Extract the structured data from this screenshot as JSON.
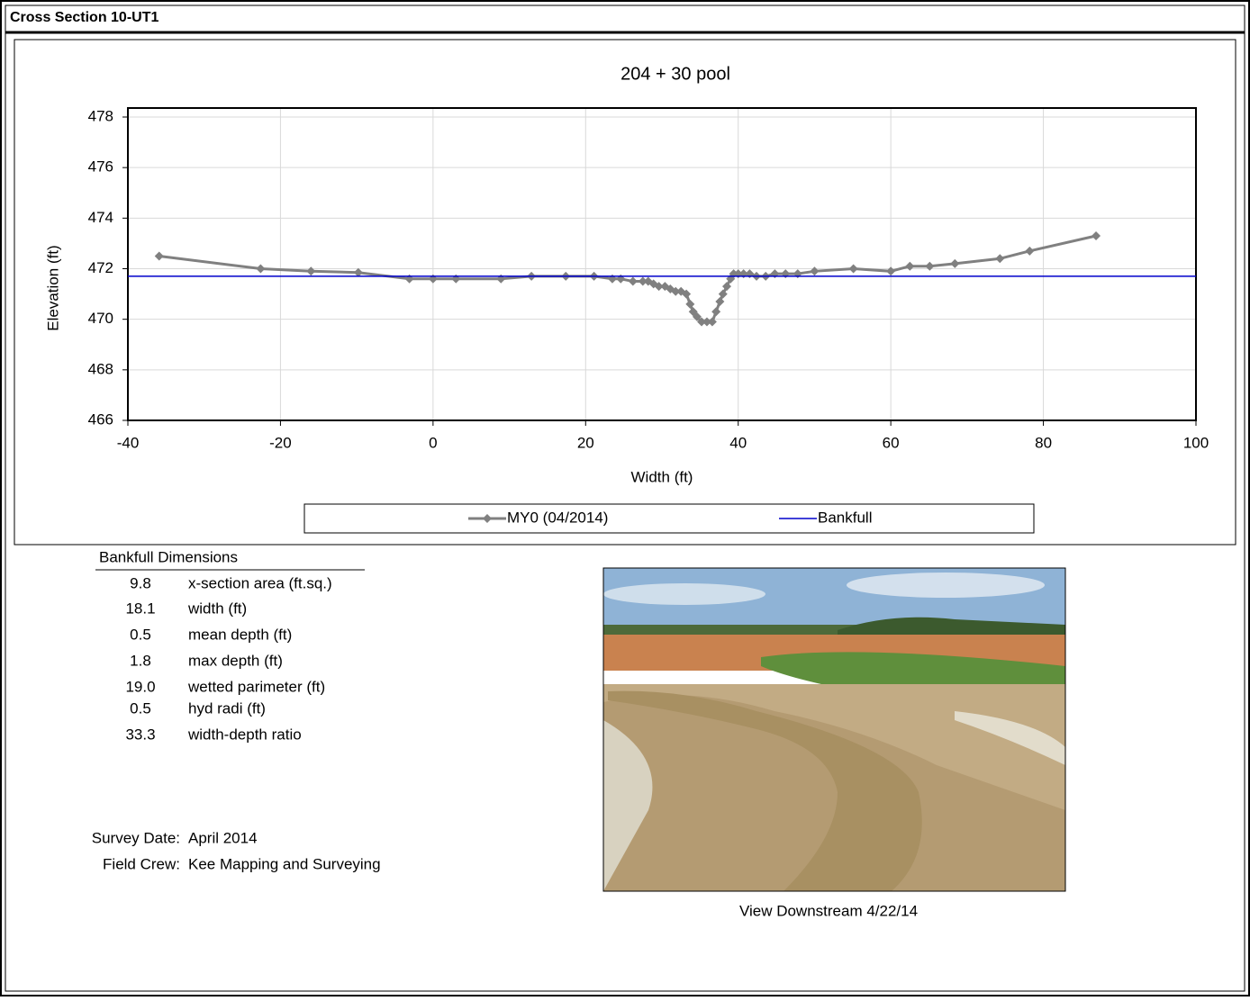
{
  "header": {
    "title": "Cross Section  10-UT1"
  },
  "chart_data": {
    "type": "line",
    "title": "204 + 30      pool",
    "xlabel": "Width (ft)",
    "ylabel": "Elevation (ft)",
    "xlim": [
      -40,
      100
    ],
    "xticks": [
      -40,
      -20,
      0,
      20,
      40,
      60,
      80,
      100
    ],
    "ylim": [
      466,
      478
    ],
    "yticks": [
      466,
      468,
      470,
      472,
      474,
      476,
      478
    ],
    "grid": true,
    "legend": "bottom",
    "series": [
      {
        "name": "MY0 (04/2014)",
        "color": "#808080",
        "marker": "diamond",
        "x": [
          -35.9,
          -22.6,
          -16.0,
          -9.8,
          -3.1,
          0.0,
          3.0,
          8.9,
          12.9,
          17.4,
          21.1,
          23.5,
          24.6,
          26.2,
          27.5,
          28.2,
          28.9,
          29.6,
          30.4,
          31.1,
          31.8,
          32.5,
          33.2,
          33.7,
          34.1,
          34.6,
          35.2,
          35.9,
          36.6,
          37.1,
          37.6,
          38.0,
          38.5,
          39.0,
          39.4,
          40.0,
          40.7,
          41.5,
          42.4,
          43.6,
          44.8,
          46.2,
          47.8,
          50.0,
          55.1,
          60.0,
          62.5,
          65.1,
          68.4,
          74.3,
          78.2,
          86.9
        ],
        "values": [
          472.5,
          472.0,
          471.9,
          471.85,
          471.6,
          471.6,
          471.6,
          471.6,
          471.7,
          471.7,
          471.7,
          471.6,
          471.6,
          471.5,
          471.5,
          471.5,
          471.4,
          471.3,
          471.3,
          471.2,
          471.1,
          471.1,
          471.0,
          470.6,
          470.3,
          470.1,
          469.9,
          469.9,
          469.9,
          470.3,
          470.7,
          471.0,
          471.3,
          471.6,
          471.8,
          471.8,
          471.8,
          471.8,
          471.7,
          471.7,
          471.8,
          471.8,
          471.8,
          471.9,
          472.0,
          471.9,
          472.1,
          472.1,
          472.2,
          472.4,
          472.7,
          473.3
        ]
      },
      {
        "name": "Bankfull",
        "color": "#0000cc",
        "x": [
          -40,
          100
        ],
        "values": [
          471.7,
          471.7
        ]
      }
    ]
  },
  "dimensions": {
    "title": "Bankfull Dimensions",
    "rows": [
      [
        "9.8",
        "x-section area (ft.sq.)"
      ],
      [
        "18.1",
        "width (ft)"
      ],
      [
        "0.5",
        "mean depth (ft)"
      ],
      [
        "1.8",
        "max depth (ft)"
      ],
      [
        "19.0",
        "wetted parimeter (ft)"
      ],
      [
        "0.5",
        "hyd radi (ft)"
      ],
      [
        "33.3",
        "width-depth ratio"
      ]
    ]
  },
  "survey": {
    "date_label": "Survey Date:",
    "date": "April 2014",
    "crew_label": "Field Crew:",
    "crew": "Kee Mapping and Surveying"
  },
  "photo": {
    "caption": "View Downstream 4/22/14"
  }
}
